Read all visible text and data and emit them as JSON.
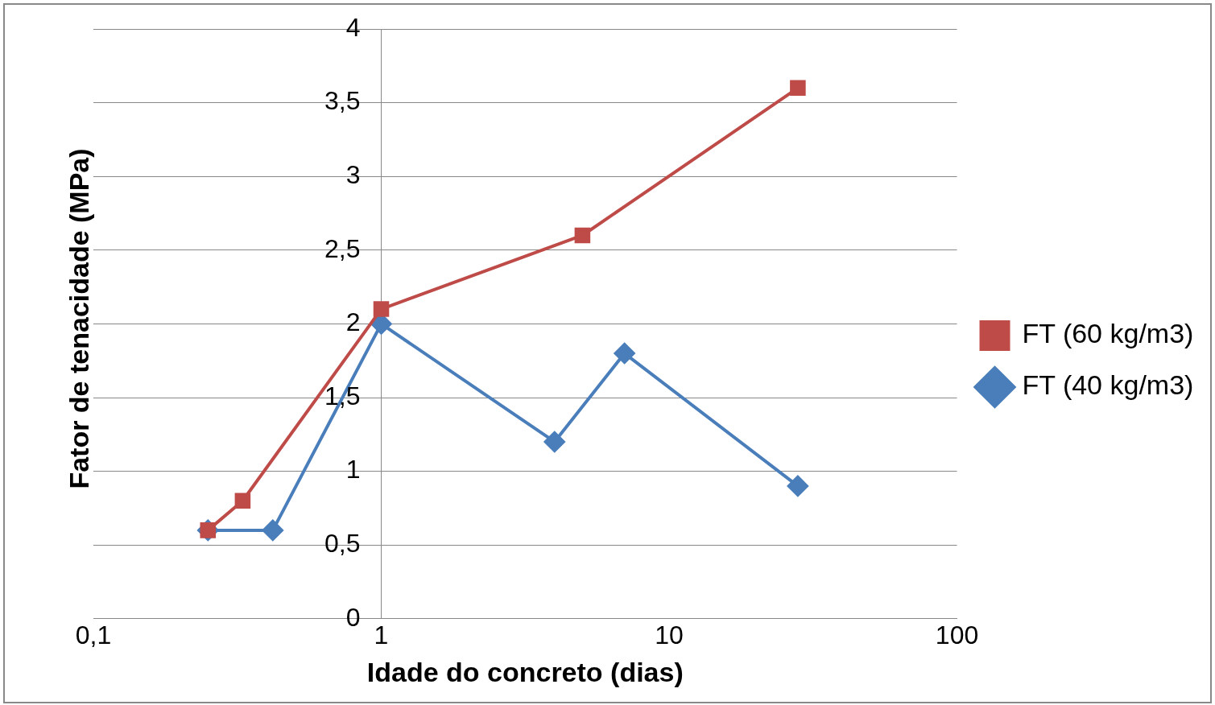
{
  "chart_data": {
    "type": "line",
    "xlabel": "Idade do concreto (dias)",
    "ylabel": "Fator de tenacidade (MPa)",
    "log": "x",
    "xlim": [
      0.1,
      100
    ],
    "xticks": [
      {
        "value": 0.1,
        "label": "0,1"
      },
      1,
      10,
      100
    ],
    "ylim": [
      0,
      4
    ],
    "yticks": [
      0,
      {
        "value": 0.5,
        "label": "0,5"
      },
      1,
      {
        "value": 1.5,
        "label": "1,5"
      },
      2,
      {
        "value": 2.5,
        "label": "2,5"
      },
      3,
      {
        "value": 3.5,
        "label": "3,5"
      },
      4
    ],
    "grid": "y",
    "legend": "right",
    "series": [
      {
        "name": "FT (40 kg/m3)",
        "color": "#4a7ebb",
        "marker": "diamond",
        "x": [
          0.25,
          0.42,
          1,
          4,
          7,
          28
        ],
        "values": [
          0.6,
          0.6,
          2,
          1.2,
          1.8,
          0.9
        ]
      },
      {
        "name": "FT (60 kg/m3)",
        "color": "#be4b48",
        "marker": "square",
        "x": [
          0.25,
          0.33,
          1,
          5,
          28
        ],
        "values": [
          0.6,
          0.8,
          2.1,
          2.6,
          3.6
        ]
      }
    ]
  }
}
